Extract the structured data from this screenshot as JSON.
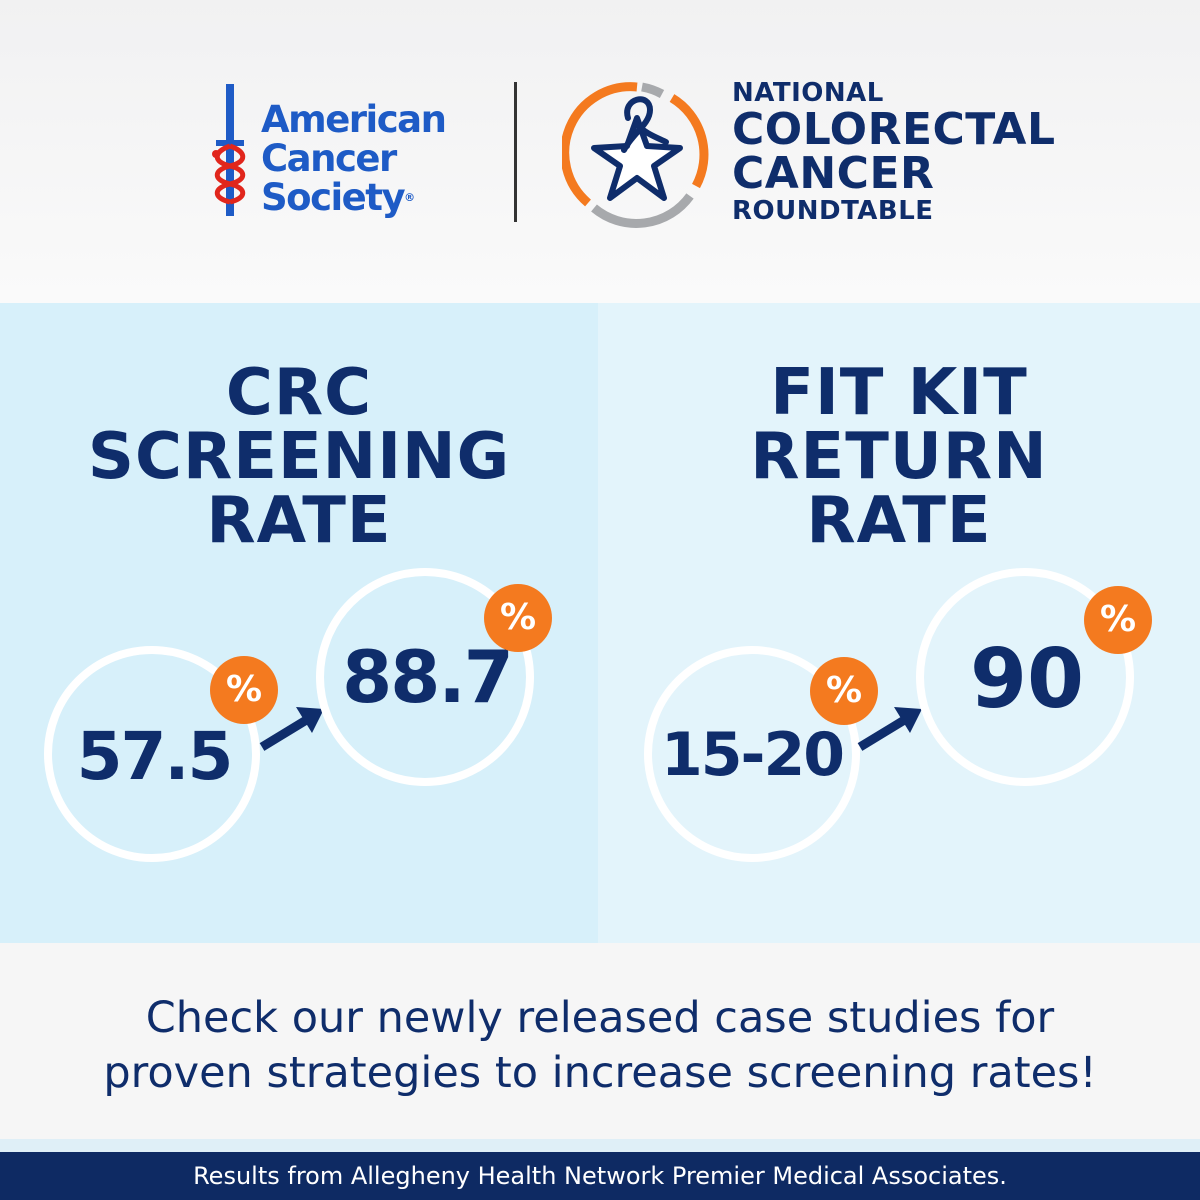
{
  "colors": {
    "navy": "#0f2d6b",
    "acs_blue": "#1e5bc6",
    "acs_red": "#e1261c",
    "orange": "#f47a1f",
    "gray": "#a7a9ac",
    "panel_left_bg": "#d7f0fa",
    "panel_right_bg": "#e3f4fb",
    "footer_bg": "#0e2a63"
  },
  "header": {
    "acs_logo": {
      "icon": "sword-caduceus-icon",
      "lines": [
        "American",
        "Cancer",
        "Society"
      ],
      "registered_mark": "®"
    },
    "nccr_logo": {
      "icon": "star-ribbon-icon",
      "lines": [
        "NATIONAL",
        "COLORECTAL",
        "CANCER",
        "ROUNDTABLE"
      ]
    }
  },
  "stats": [
    {
      "title_lines": [
        "CRC",
        "SCREENING",
        "RATE"
      ],
      "before": {
        "value": "57.5",
        "unit": "%"
      },
      "after": {
        "value": "88.7",
        "unit": "%"
      }
    },
    {
      "title_lines": [
        "FIT KIT",
        "RETURN",
        "RATE"
      ],
      "before": {
        "value": "15-20",
        "unit": "%"
      },
      "after": {
        "value": "90",
        "unit": "%"
      }
    }
  ],
  "cta": {
    "line1": "Check our newly released case studies for",
    "line2": "proven strategies to increase screening rates!"
  },
  "footer": {
    "text": "Results from Allegheny Health Network Premier Medical Associates."
  }
}
